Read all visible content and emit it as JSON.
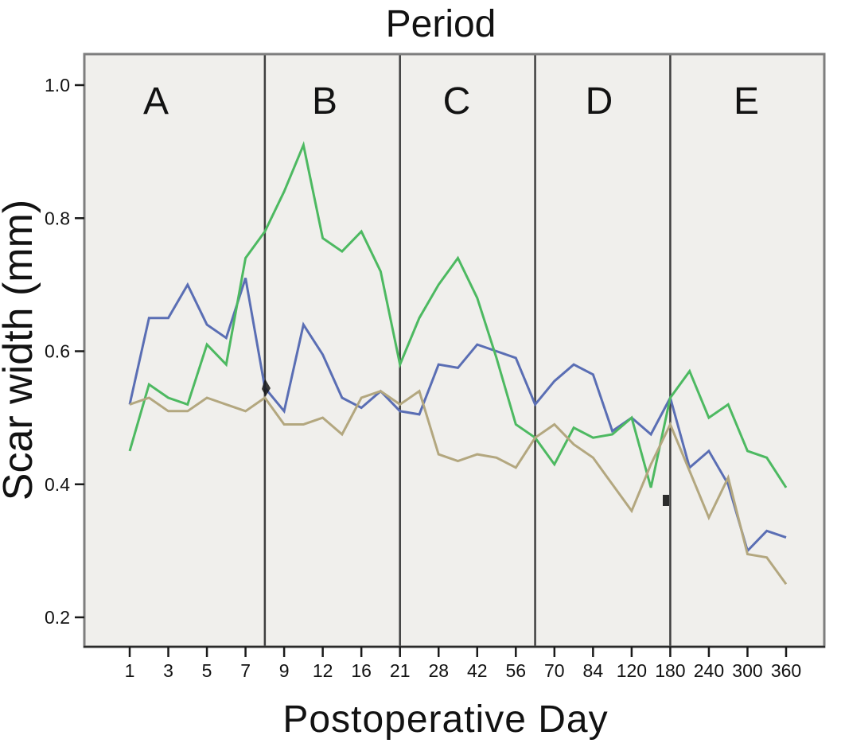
{
  "chart": {
    "plot_bg": "#f0efec",
    "frame_color": "#7e7e7e",
    "divider_color": "#3f3f3f",
    "axis_color": "#2b2b2b",
    "text_color": "#121212"
  },
  "chart_data": {
    "type": "line",
    "title": "Period",
    "xlabel": "Postoperative Day",
    "ylabel": "Scar width (mm)",
    "grid": "off",
    "legend": "none",
    "y_ticks": [
      0.2,
      0.4,
      0.6,
      0.8,
      1.0
    ],
    "y_range_shown": [
      0.15,
      1.05
    ],
    "n_points": 35,
    "x_tick_labels": [
      "1",
      "3",
      "5",
      "7",
      "9",
      "12",
      "16",
      "21",
      "28",
      "42",
      "56",
      "70",
      "84",
      "120",
      "180",
      "240",
      "300",
      "360"
    ],
    "x_tick_indices": [
      0,
      2,
      4,
      6,
      8,
      10,
      12,
      14,
      16,
      18,
      20,
      22,
      24,
      26,
      28,
      30,
      32,
      34
    ],
    "x_axis_note": "categorical axis, 35 equally spaced measurement points; every second point labeled",
    "periods": {
      "labels": [
        "A",
        "B",
        "C",
        "D",
        "E"
      ],
      "boundary_indices": [
        7,
        14,
        21,
        28
      ]
    },
    "series": [
      {
        "name": "blue-line",
        "color": "#5a6eb4",
        "values": [
          0.52,
          0.65,
          0.65,
          0.7,
          0.64,
          0.62,
          0.71,
          0.545,
          0.51,
          0.64,
          0.595,
          0.53,
          0.515,
          0.54,
          0.51,
          0.505,
          0.58,
          0.575,
          0.61,
          0.6,
          0.59,
          0.52,
          0.555,
          0.58,
          0.565,
          0.48,
          0.5,
          0.475,
          0.53,
          0.425,
          0.45,
          0.4,
          0.3,
          0.33,
          0.32
        ]
      },
      {
        "name": "green-line",
        "color": "#4db961",
        "values": [
          0.45,
          0.55,
          0.53,
          0.52,
          0.61,
          0.58,
          0.74,
          0.78,
          0.84,
          0.91,
          0.77,
          0.75,
          0.78,
          0.72,
          0.58,
          0.65,
          0.7,
          0.74,
          0.68,
          0.59,
          0.49,
          0.47,
          0.43,
          0.485,
          0.47,
          0.475,
          0.5,
          0.395,
          0.53,
          0.57,
          0.5,
          0.52,
          0.45,
          0.44,
          0.395
        ]
      },
      {
        "name": "tan-line",
        "color": "#b3a77f",
        "values": [
          0.52,
          0.53,
          0.51,
          0.51,
          0.53,
          0.52,
          0.51,
          0.53,
          0.49,
          0.49,
          0.5,
          0.475,
          0.53,
          0.54,
          0.52,
          0.54,
          0.445,
          0.435,
          0.445,
          0.44,
          0.425,
          0.47,
          0.49,
          0.46,
          0.44,
          0.4,
          0.36,
          0.43,
          0.49,
          0.42,
          0.35,
          0.41,
          0.295,
          0.29,
          0.25
        ]
      }
    ]
  }
}
